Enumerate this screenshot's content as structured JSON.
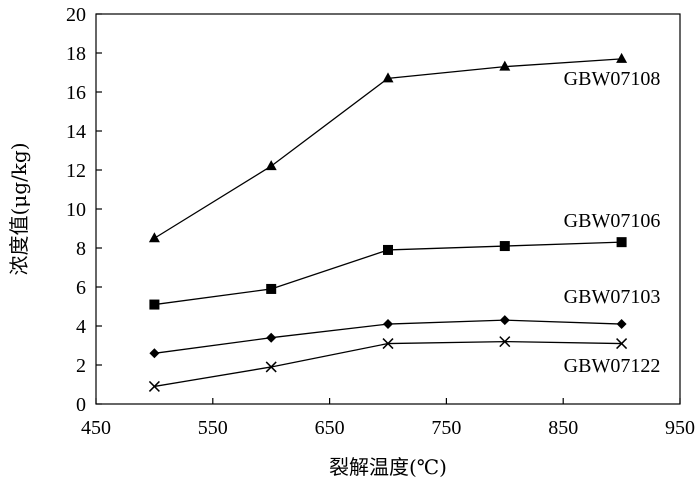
{
  "chart_data": {
    "type": "line",
    "title": "",
    "xlabel": "裂解温度(℃)",
    "ylabel": "浓度值(μg/kg)",
    "xlim": [
      450,
      950
    ],
    "ylim": [
      0,
      20
    ],
    "xticks": [
      450,
      550,
      650,
      750,
      850,
      950
    ],
    "yticks": [
      0,
      2,
      4,
      6,
      8,
      10,
      12,
      14,
      16,
      18,
      20
    ],
    "grid": false,
    "legend": "inline labels",
    "x": [
      500,
      600,
      700,
      800,
      900
    ],
    "series": [
      {
        "name": "GBW07108",
        "marker": "triangle",
        "values": [
          8.5,
          12.2,
          16.7,
          17.3,
          17.7
        ]
      },
      {
        "name": "GBW07106",
        "marker": "square",
        "values": [
          5.1,
          5.9,
          7.9,
          8.1,
          8.3
        ]
      },
      {
        "name": "GBW07103",
        "marker": "diamond",
        "values": [
          2.6,
          3.4,
          4.1,
          4.3,
          4.1
        ]
      },
      {
        "name": "GBW07122",
        "marker": "x",
        "values": [
          0.9,
          1.9,
          3.1,
          3.2,
          3.1
        ]
      }
    ],
    "line_color": "#000000"
  }
}
